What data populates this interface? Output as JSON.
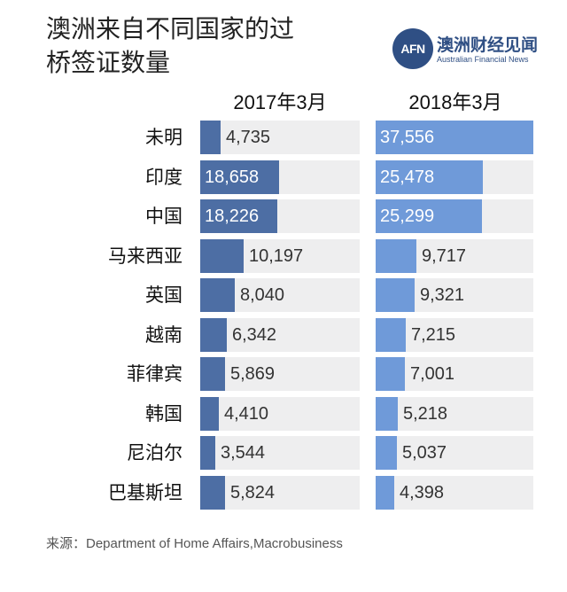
{
  "title": "澳洲来自不同国家的过桥签证数量",
  "brand": {
    "logo_text": "AFN",
    "name_cn": "澳洲财经见闻",
    "name_en": "Australian Financial News"
  },
  "source": "来源：Department of Home Affairs,Macrobusiness",
  "colors": {
    "bar_2017": "#4d6ea4",
    "bar_2018": "#6f9ad9",
    "track": "#eeeeef"
  },
  "chart_data": {
    "type": "bar",
    "orientation": "horizontal",
    "title": "澳洲来自不同国家的过桥签证数量",
    "categories": [
      "未明",
      "印度",
      "中国",
      "马来西亚",
      "英国",
      "越南",
      "菲律宾",
      "韩国",
      "尼泊尔",
      "巴基斯坦"
    ],
    "series": [
      {
        "name": "2017年3月",
        "values": [
          4735,
          18658,
          18226,
          10197,
          8040,
          6342,
          5869,
          4410,
          3544,
          5824
        ],
        "labels": [
          "4,735",
          "18,658",
          "18,226",
          "10,197",
          "8,040",
          "6,342",
          "5,869",
          "4,410",
          "3,544",
          "5,824"
        ]
      },
      {
        "name": "2018年3月",
        "values": [
          37556,
          25478,
          25299,
          9717,
          9321,
          7215,
          7001,
          5218,
          5037,
          4398
        ],
        "labels": [
          "37,556",
          "25,478",
          "25,299",
          "9,717",
          "9,321",
          "7,215",
          "7,001",
          "5,218",
          "5,037",
          "4,398"
        ]
      }
    ],
    "xlim": [
      0,
      37556
    ],
    "legend": "column headers above each panel",
    "grid": false
  }
}
